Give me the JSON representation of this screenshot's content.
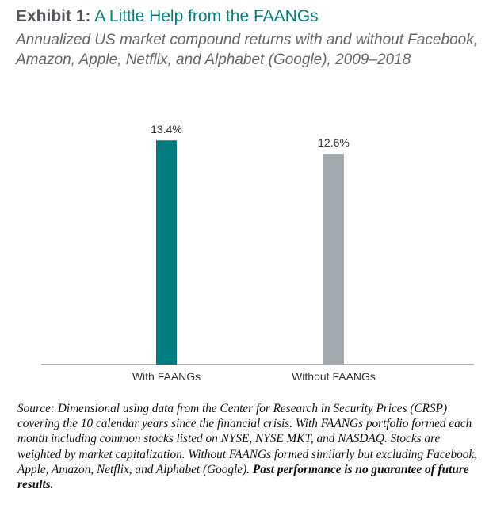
{
  "header": {
    "exhibit_label": "Exhibit 1:",
    "exhibit_title": "A Little Help from the FAANGs",
    "subtitle": "Annualized US market compound returns with and without Facebook, Amazon, Apple, Netflix, and Alphabet (Google), 2009–2018"
  },
  "chart_data": {
    "type": "bar",
    "categories": [
      "With FAANGs",
      "Without FAANGs"
    ],
    "values": [
      13.4,
      12.6
    ],
    "data_labels": [
      "13.4%",
      "12.6%"
    ],
    "colors": [
      "#007c80",
      "#a2aaad"
    ],
    "xlabel": "",
    "ylabel": "",
    "ylim": [
      0,
      14.5
    ],
    "grid": false,
    "legend": "none"
  },
  "source": {
    "text": "Source: Dimensional using data from the Center for Research in Security Prices (CRSP) covering the 10 calendar years since the financial crisis. With FAANGs portfolio formed each month including common stocks listed on NYSE, NYSE MKT, and NASDAQ. Stocks are weighted by market capitalization. Without FAANGs formed similarly but excluding Facebook, Apple, Amazon, Netflix, and Alphabet (Google).",
    "disclaimer": "Past performance is no guarantee of future results."
  }
}
